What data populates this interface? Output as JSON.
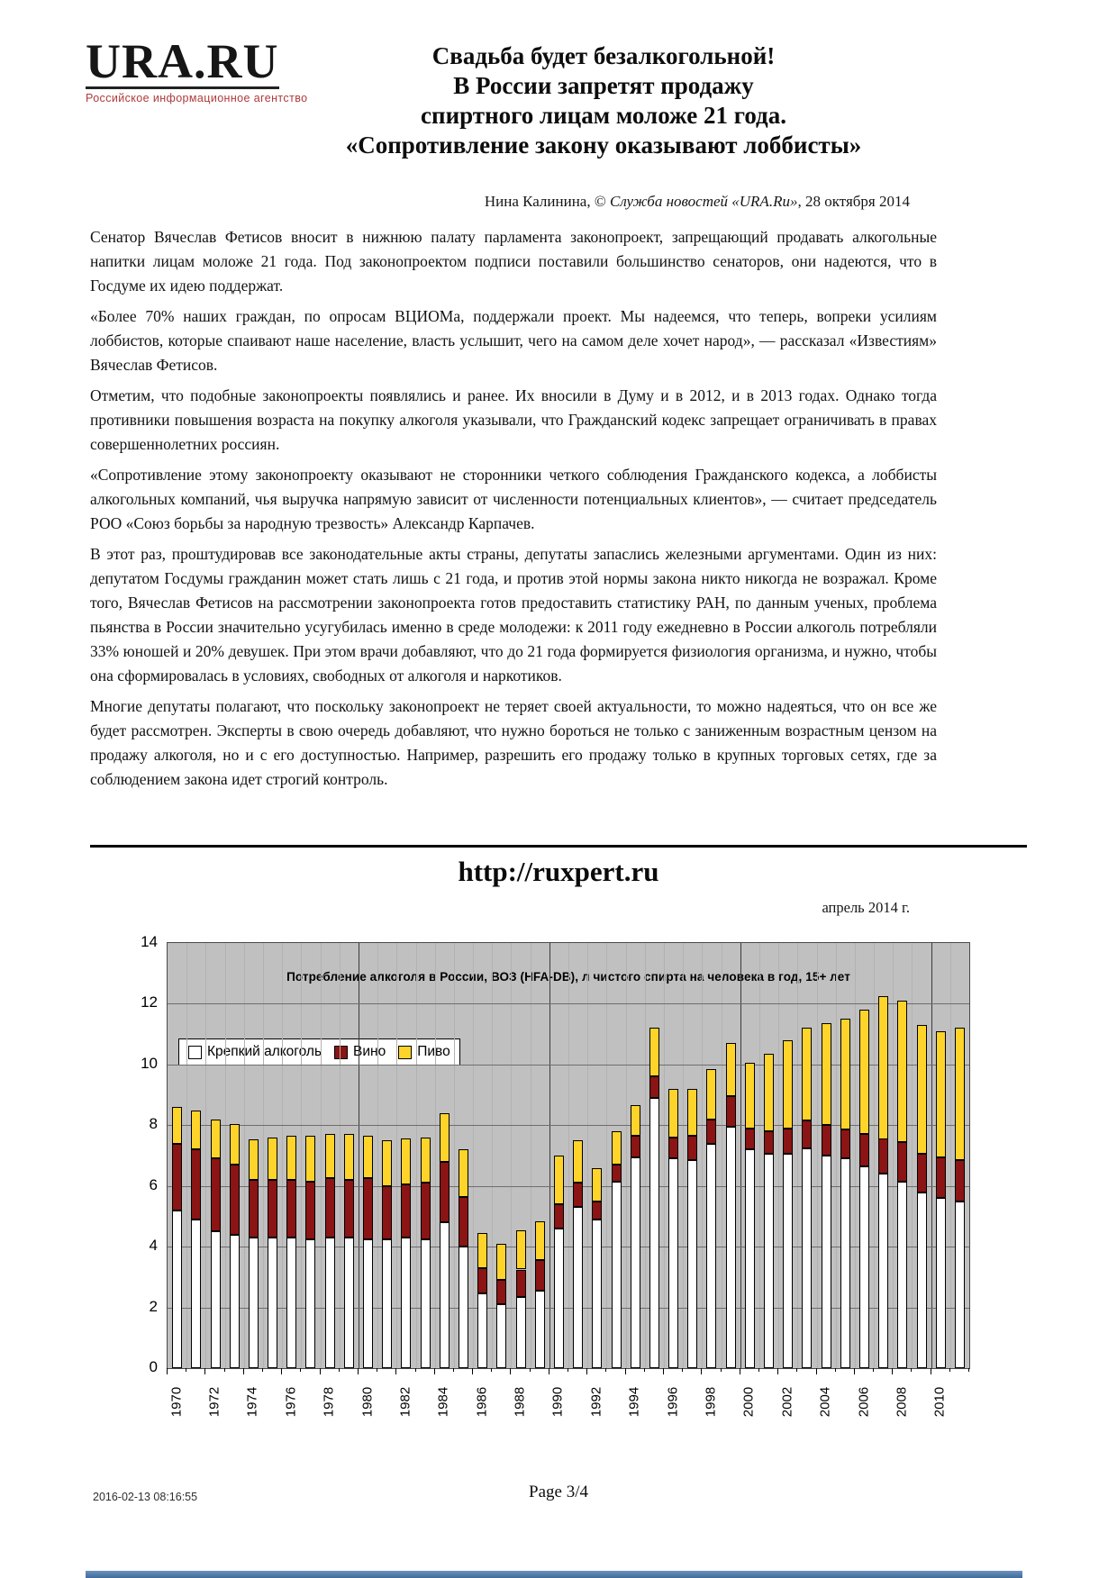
{
  "page": {
    "logo": {
      "text": "URA.RU",
      "tagline": "Российское информационное агентство"
    },
    "title_lines": [
      "Свадьба будет безалкогольной!",
      "В России запретят продажу",
      "спиртного лицам моложе 21 года.",
      "«Сопротивление закону оказывают лоббисты»"
    ],
    "byline": {
      "author": "Нина Калинина, © ",
      "agency": "Служба новостей «URA.Ru»",
      "date": ", 28 октября 2014"
    },
    "link_heading": "http://ruxpert.ru",
    "chart_date": "апрель 2014 г.",
    "footer": {
      "timestamp": "2016-02-13 08:16:55",
      "page_label": "Page 3/4"
    }
  },
  "article": {
    "paragraphs": [
      "Сенатор Вячеслав Фетисов вносит в нижнюю палату парламента законопроект, запрещающий продавать алкогольные напитки лицам моложе 21 года. Под законопроектом подписи поставили большинство сенаторов, они надеются, что в Госдуме их идею поддержат.",
      "«Более 70% наших граждан, по опросам ВЦИОМа, поддержали проект. Мы надеемся, что теперь, вопреки усилиям лоббистов, которые спаивают наше население, власть услышит, чего на самом деле хочет народ», — рассказал «Известиям» Вячеслав Фетисов.",
      "Отметим, что подобные законопроекты появлялись и ранее. Их вносили в Думу и в 2012, и в 2013 годах. Однако тогда противники повышения возраста на покупку алкоголя указывали, что Гражданский кодекс запрещает ограничивать в правах совершеннолетних россиян.",
      "«Сопротивление этому законопроекту оказывают не сторонники четкого соблюдения Гражданского кодекса, а лоббисты алкогольных компаний, чья выручка напрямую зависит от численности потенциальных клиентов», — считает председатель РОО «Союз борьбы за народную трезвость» Александр Карпачев.",
      "В этот раз, проштудировав все законодательные акты страны, депутаты запаслись железными аргументами. Один из них: депутатом Госдумы гражданин может стать лишь с 21 года, и против этой нормы закона никто никогда не возражал. Кроме того, Вячеслав Фетисов на рассмотрении законопроекта готов предоставить статистику РАН, по данным ученых, проблема пьянства в России значительно усугубилась именно в среде молодежи: к 2011 году ежедневно в России алкоголь потребляли 33% юношей и 20% девушек. При этом врачи добавляют, что до 21 года формируется физиология организма, и нужно, чтобы она сформировалась в условиях, свободных от алкоголя и наркотиков.",
      "Многие депутаты полагают, что поскольку законопроект не теряет своей актуальности, то можно надеяться, что он все же будет рассмотрен. Эксперты в свою очередь добавляют, что нужно бороться не только с заниженным возрастным цензом на продажу алкоголя, но и с его доступностью. Например, разрешить его продажу только в крупных торговых сетях, где за соблюдением закона идет строгий контроль."
    ]
  },
  "chart_data": {
    "type": "bar",
    "stacked": true,
    "title": "Потребление алкоголя в России, ВОЗ (HFA-DB), л чистого спирта на человека в год, 15+ лет",
    "legend": [
      "Крепкий алкоголь",
      "Вино",
      "Пиво"
    ],
    "colors": {
      "strong": "#ffffff",
      "wine": "#8b1414",
      "beer": "#ffd42a",
      "plot_bg": "#c0c0c0"
    },
    "ylim": [
      0,
      14
    ],
    "y_ticks": [
      0,
      2,
      4,
      6,
      8,
      10,
      12,
      14
    ],
    "grid": "horizontal-major, per-year vertical",
    "legend_position": "top-left inside plot",
    "years": [
      1970,
      1971,
      1972,
      1973,
      1974,
      1975,
      1976,
      1977,
      1978,
      1979,
      1980,
      1981,
      1982,
      1983,
      1984,
      1985,
      1986,
      1987,
      1988,
      1989,
      1990,
      1991,
      1992,
      1993,
      1994,
      1995,
      1996,
      1997,
      1998,
      1999,
      2000,
      2001,
      2002,
      2003,
      2004,
      2005,
      2006,
      2007,
      2008,
      2009,
      2010,
      2011
    ],
    "x_tick_labels": [
      "1970",
      "1972",
      "1974",
      "1976",
      "1978",
      "1980",
      "1982",
      "1984",
      "1986",
      "1988",
      "1990",
      "1992",
      "1994",
      "1996",
      "1998",
      "2000",
      "2002",
      "2004",
      "2006",
      "2008",
      "2010"
    ],
    "series": [
      {
        "name": "Крепкий алкоголь",
        "values": [
          5.2,
          4.9,
          4.5,
          4.4,
          4.3,
          4.3,
          4.3,
          4.25,
          4.3,
          4.3,
          4.25,
          4.25,
          4.3,
          4.25,
          4.8,
          4.0,
          2.45,
          2.1,
          2.35,
          2.55,
          4.6,
          5.3,
          4.9,
          6.15,
          6.95,
          8.9,
          6.9,
          6.85,
          7.4,
          7.95,
          7.2,
          7.05,
          7.05,
          7.25,
          7.0,
          6.9,
          6.65,
          6.4,
          6.15,
          5.8,
          5.6,
          5.5
        ]
      },
      {
        "name": "Вино",
        "values": [
          2.2,
          2.3,
          2.4,
          2.3,
          1.9,
          1.9,
          1.9,
          1.9,
          1.95,
          1.9,
          2.0,
          1.75,
          1.75,
          1.85,
          2.0,
          1.65,
          0.85,
          0.8,
          0.9,
          1.0,
          0.8,
          0.8,
          0.6,
          0.55,
          0.7,
          0.7,
          0.7,
          0.8,
          0.8,
          1.0,
          0.7,
          0.75,
          0.85,
          0.9,
          1.0,
          0.95,
          1.05,
          1.15,
          1.3,
          1.25,
          1.35,
          1.35
        ]
      },
      {
        "name": "Пиво",
        "values": [
          1.2,
          1.3,
          1.3,
          1.35,
          1.35,
          1.4,
          1.45,
          1.5,
          1.45,
          1.5,
          1.4,
          1.5,
          1.5,
          1.5,
          1.6,
          1.55,
          1.15,
          1.2,
          1.3,
          1.3,
          1.6,
          1.4,
          1.1,
          1.1,
          1.0,
          1.6,
          1.6,
          1.55,
          1.65,
          1.75,
          2.15,
          2.55,
          2.9,
          3.05,
          3.35,
          3.65,
          4.1,
          4.7,
          4.65,
          4.25,
          4.15,
          4.35
        ]
      }
    ]
  }
}
